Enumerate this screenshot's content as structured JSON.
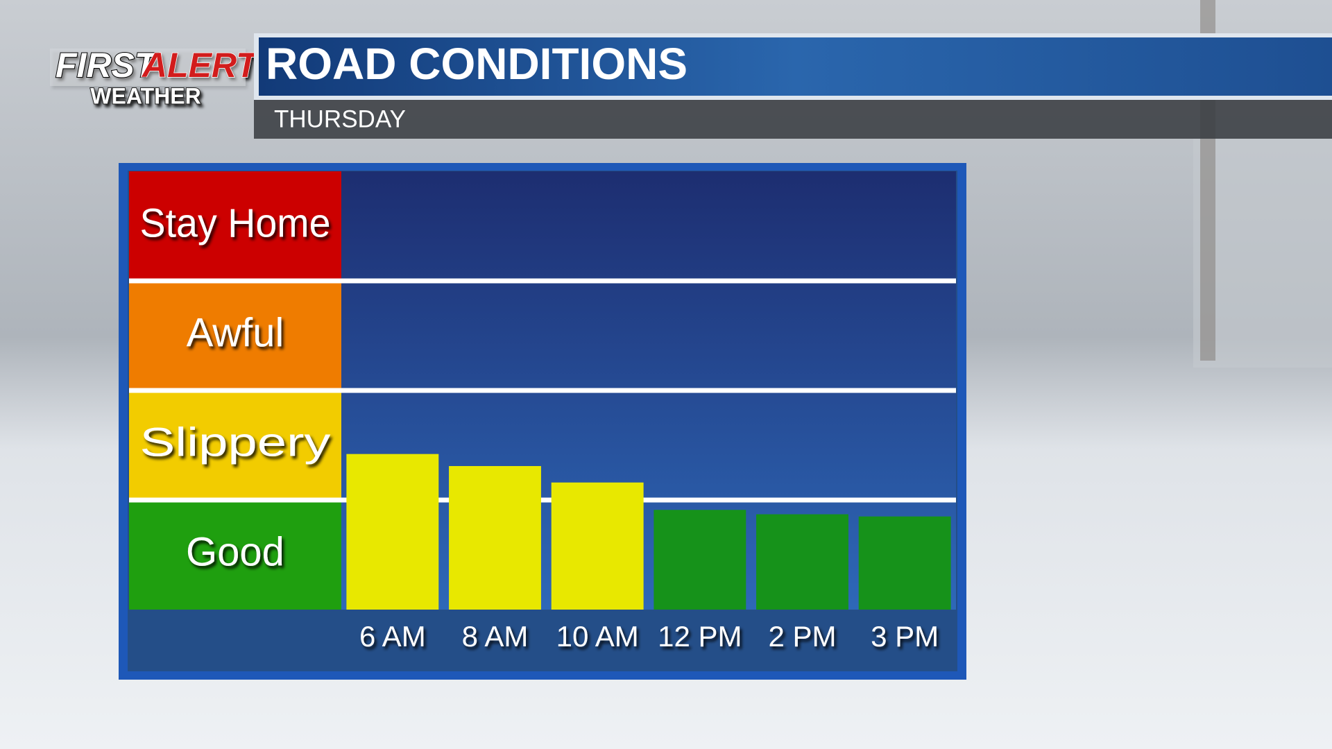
{
  "branding": {
    "first": "FIRST",
    "alert": "ALERT",
    "weather": "WEATHER"
  },
  "chart_data": {
    "type": "bar",
    "title": "ROAD CONDITIONS",
    "subtitle": "THURSDAY",
    "categories": [
      "6 AM",
      "8 AM",
      "10 AM",
      "12 PM",
      "2 PM",
      "3 PM"
    ],
    "values": [
      1.42,
      1.31,
      1.16,
      0.91,
      0.87,
      0.85
    ],
    "colors": [
      "#e8e800",
      "#e8e800",
      "#e8e800",
      "#16921a",
      "#16921a",
      "#16921a"
    ],
    "ylim": [
      0,
      4
    ],
    "bands": [
      {
        "name": "Good",
        "color": "#1f9f0f",
        "from": 0,
        "to": 1
      },
      {
        "name": "Slippery",
        "color": "#f2cc00",
        "from": 1,
        "to": 2
      },
      {
        "name": "Awful",
        "color": "#ef7c00",
        "from": 2,
        "to": 3
      },
      {
        "name": "Stay Home",
        "color": "#cc0000",
        "from": 3,
        "to": 4
      }
    ]
  }
}
